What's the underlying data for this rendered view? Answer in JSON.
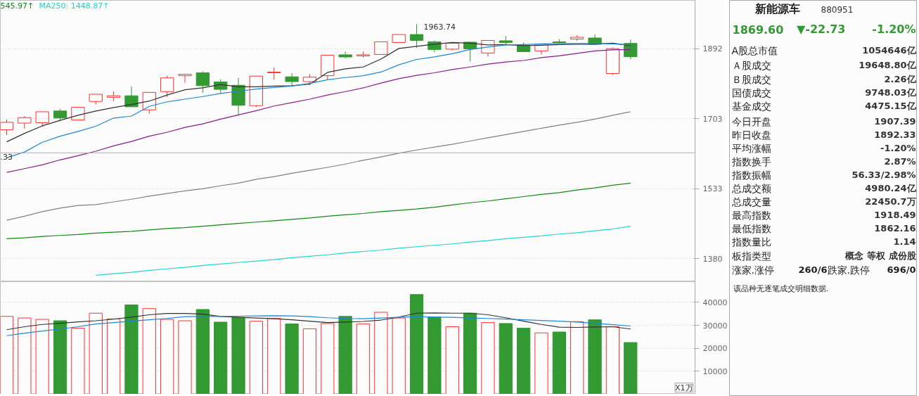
{
  "chart_data": [
    {
      "type": "candlestick",
      "categories": [
        null,
        null,
        null,
        null,
        null,
        null,
        null,
        null,
        null,
        null,
        null,
        null,
        null,
        null,
        null,
        null,
        null,
        null,
        null,
        null,
        null,
        null,
        null,
        null,
        null,
        null,
        null,
        null,
        null,
        null,
        null,
        null,
        null,
        null,
        null,
        null
      ],
      "ohlc": [
        [
          1675,
          1701,
          1662,
          1694
        ],
        [
          1692,
          1710,
          1678,
          1706
        ],
        [
          1693,
          1721,
          1683,
          1721
        ],
        [
          1723,
          1728,
          1697,
          1705
        ],
        [
          1700,
          1733,
          1700,
          1733
        ],
        [
          1748,
          1767,
          1740,
          1767
        ],
        [
          1759,
          1775,
          1749,
          1763
        ],
        [
          1763,
          1788,
          1734,
          1734
        ],
        [
          1726,
          1772,
          1716,
          1772
        ],
        [
          1774,
          1817,
          1760,
          1811
        ],
        [
          1817,
          1821,
          1798,
          1821
        ],
        [
          1825,
          1829,
          1771,
          1790
        ],
        [
          1800,
          1807,
          1769,
          1780
        ],
        [
          1791,
          1811,
          1711,
          1738
        ],
        [
          1737,
          1816,
          1733,
          1816
        ],
        [
          1825,
          1840,
          1806,
          1827
        ],
        [
          1814,
          1824,
          1791,
          1801
        ],
        [
          1801,
          1822,
          1792,
          1813
        ],
        [
          1817,
          1874,
          1806,
          1874
        ],
        [
          1875,
          1884,
          1865,
          1869
        ],
        [
          1872,
          1884,
          1868,
          1875
        ],
        [
          1876,
          1912,
          1876,
          1912
        ],
        [
          1910,
          1933,
          1910,
          1933
        ],
        [
          1933,
          1963.74,
          1895,
          1916
        ],
        [
          1912,
          1916,
          1882,
          1890
        ],
        [
          1891,
          1908,
          1887,
          1908
        ],
        [
          1911,
          1912,
          1856,
          1892
        ],
        [
          1880,
          1916,
          1870,
          1916
        ],
        [
          1915,
          1929,
          1905,
          1910
        ],
        [
          1901,
          1910,
          1884,
          1884
        ],
        [
          1886,
          1905,
          1876,
          1905
        ],
        [
          1912,
          1920,
          1907,
          1910
        ],
        [
          1920,
          1931,
          1915,
          1925
        ],
        [
          1923,
          1933,
          1905,
          1905
        ],
        [
          1823,
          1896,
          1819,
          1892.33
        ],
        [
          1907.39,
          1918.49,
          1862.16,
          1869.6
        ]
      ],
      "colors": [
        "#ff3232",
        "#ff3232",
        "#ff3232",
        "#339933",
        "#ff3232",
        "#ff3232",
        "#ff3232",
        "#339933",
        "#ff3232",
        "#ff3232",
        "#ff3232",
        "#339933",
        "#339933",
        "#339933",
        "#ff3232",
        "#ff3232",
        "#339933",
        "#ff3232",
        "#ff3232",
        "#339933",
        "#ff3232",
        "#ff3232",
        "#ff3232",
        "#339933",
        "#339933",
        "#ff3232",
        "#339933",
        "#ff3232",
        "#339933",
        "#339933",
        "#ff3232",
        "#339933",
        "#ff3232",
        "#339933",
        "#ff3232",
        "#339933"
      ],
      "series": [
        {
          "type": "line",
          "color": "#333333",
          "values": [
            1645,
            1666,
            1685,
            1699,
            1712,
            1723,
            1732,
            1740,
            1749,
            1765,
            1779,
            1784,
            1793,
            1787,
            1787,
            1789,
            1790,
            1794,
            1826,
            1836,
            1841,
            1863,
            1893,
            1899,
            1905,
            1910,
            1908,
            1903,
            1904,
            1901,
            1902,
            1904,
            1905,
            1905,
            1908,
            1901
          ]
        },
        {
          "type": "line",
          "color": "#1c86d8",
          "values": [
            1606,
            1620,
            1644,
            1659,
            1671,
            1684,
            1705,
            1710,
            1735,
            1747,
            1754,
            1761,
            1769,
            1775,
            1781,
            1785,
            1789,
            1796,
            1806,
            1812,
            1817,
            1827,
            1847,
            1862,
            1869,
            1878,
            1890,
            1897,
            1903,
            1904,
            1906,
            1907,
            1907,
            1907,
            1906,
            1903
          ]
        },
        {
          "type": "line",
          "color": "#8b1a8b",
          "values": [
            1571,
            1580,
            1589,
            1601,
            1611,
            1622,
            1635,
            1646,
            1659,
            1669,
            1681,
            1690,
            1702,
            1713,
            1724,
            1736,
            1745,
            1754,
            1765,
            1774,
            1784,
            1797,
            1809,
            1818,
            1825,
            1834,
            1841,
            1849,
            1855,
            1859,
            1867,
            1872,
            1879,
            1886,
            1889,
            1890
          ]
        },
        {
          "type": "line",
          "color": "#808080",
          "values": [
            1462,
            1471,
            1481,
            1489,
            1495,
            1497,
            1503,
            1509,
            1516,
            1522,
            1528,
            1533,
            1540,
            1546,
            1555,
            1561,
            1569,
            1576,
            1583,
            1591,
            1600,
            1608,
            1617,
            1625,
            1632,
            1639,
            1647,
            1655,
            1663,
            1671,
            1679,
            1687,
            1694,
            1702,
            1712,
            1721
          ]
        },
        {
          "type": "line",
          "color": "#118811",
          "values": [
            1422,
            1424,
            1427,
            1429,
            1431,
            1434,
            1436,
            1438,
            1441,
            1444,
            1446,
            1449,
            1452,
            1455,
            1458,
            1461,
            1464,
            1467,
            1471,
            1474,
            1477,
            1481,
            1484,
            1487,
            1491,
            1496,
            1501,
            1505,
            1510,
            1515,
            1520,
            1524,
            1530,
            1535,
            1541,
            1545.97
          ]
        },
        {
          "type": "line",
          "color": "#22d3d3",
          "values": [
            null,
            null,
            null,
            null,
            null,
            1346,
            1349,
            1352,
            1356,
            1359,
            1362,
            1366,
            1369,
            1372,
            1375,
            1378,
            1382,
            1385,
            1388,
            1392,
            1395,
            1398,
            1402,
            1405,
            1408,
            1411,
            1415,
            1418,
            1422,
            1425,
            1428,
            1432,
            1435,
            1439,
            1443,
            1448.87
          ]
        }
      ],
      "log": true,
      "ylim": [
        1333,
        2035
      ],
      "yticks": [
        1380,
        1533,
        1703,
        1892
      ],
      "grid": "y",
      "ref_lines": [
        {
          "axis": "y",
          "value": 1618,
          "color": "#b0b0b0"
        }
      ],
      "annotations": [
        "545.97↑",
        "MA250: 1448.87↑",
        "1963.74",
        {
          "text": ".33",
          "y": 1618
        }
      ]
    },
    {
      "type": "bar",
      "categories": [
        null,
        null,
        null,
        null,
        null,
        null,
        null,
        null,
        null,
        null,
        null,
        null,
        null,
        null,
        null,
        null,
        null,
        null,
        null,
        null,
        null,
        null,
        null,
        null,
        null,
        null,
        null,
        null,
        null,
        null,
        null,
        null,
        null,
        null,
        null,
        null
      ],
      "series": [
        {
          "type": "bar",
          "values": [
            33900,
            33200,
            32600,
            32000,
            28800,
            35300,
            32800,
            38900,
            37300,
            32600,
            32000,
            36900,
            31400,
            33400,
            31800,
            33000,
            30600,
            28500,
            30800,
            33900,
            30600,
            35700,
            33200,
            43400,
            33600,
            29400,
            35300,
            31200,
            30800,
            28800,
            26700,
            27100,
            31600,
            32400,
            29400,
            22500
          ],
          "colors": [
            "#ff3232",
            "#ff3232",
            "#ff3232",
            "#339933",
            "#ff3232",
            "#ff3232",
            "#ff3232",
            "#339933",
            "#ff3232",
            "#ff3232",
            "#ff3232",
            "#339933",
            "#339933",
            "#339933",
            "#ff3232",
            "#ff3232",
            "#339933",
            "#ff3232",
            "#ff3232",
            "#339933",
            "#ff3232",
            "#ff3232",
            "#ff3232",
            "#339933",
            "#339933",
            "#ff3232",
            "#339933",
            "#ff3232",
            "#339933",
            "#339933",
            "#ff3232",
            "#339933",
            "#ff3232",
            "#339933",
            "#ff3232",
            "#339933"
          ]
        },
        {
          "type": "line",
          "color": "#333333",
          "values": [
            28100,
            29400,
            30400,
            30900,
            31500,
            32000,
            32700,
            33600,
            34600,
            35200,
            35200,
            34900,
            33900,
            33500,
            33200,
            32900,
            32400,
            31800,
            31200,
            31400,
            31700,
            32300,
            33600,
            35300,
            35400,
            35300,
            35300,
            34600,
            33300,
            31800,
            30400,
            29200,
            29100,
            29300,
            29400,
            28400
          ]
        },
        {
          "type": "line",
          "color": "#1c86d8",
          "values": [
            25500,
            26600,
            27500,
            28400,
            29400,
            30600,
            31200,
            31800,
            32400,
            33000,
            33800,
            33900,
            33900,
            34000,
            34100,
            34200,
            34100,
            33800,
            33300,
            33000,
            32900,
            33200,
            33500,
            33800,
            33600,
            33500,
            33200,
            33000,
            32700,
            32400,
            32100,
            31800,
            31400,
            30900,
            30300,
            29700
          ]
        }
      ],
      "ylim": [
        0,
        49000
      ],
      "yticks": [
        10000,
        20000,
        30000,
        40000
      ],
      "grid": "y",
      "annotations": [
        "X1万"
      ]
    },
    {
      "type": "other",
      "title": "新能源车",
      "subtitle": "880951",
      "annotations": [
        "1869.60",
        "▼-22.73",
        "-1.20%",
        "A股总市值",
        "1054646亿",
        "Ａ股成交",
        "19648.80亿",
        "Ｂ股成交",
        "2.26亿",
        "国债成交",
        "9748.03亿",
        "基金成交",
        "4475.15亿",
        "今日开盘",
        "1907.39",
        "昨日收盘",
        "1892.33",
        "平均涨幅",
        "-1.20%",
        "指数换手",
        "2.87%",
        "指数振幅",
        "56.33/2.98%",
        "总成交额",
        "4980.24亿",
        "总成交量",
        "22450.7万",
        "最高指数",
        "1918.49",
        "最低指数",
        "1862.16",
        "指数量比",
        "1.14",
        "板指类型",
        "概念 等权 成份股",
        "涨家.涨停",
        "260/6",
        "跌家.跌停",
        "696/0",
        "该品种无逐笔成交明细数据."
      ]
    }
  ]
}
